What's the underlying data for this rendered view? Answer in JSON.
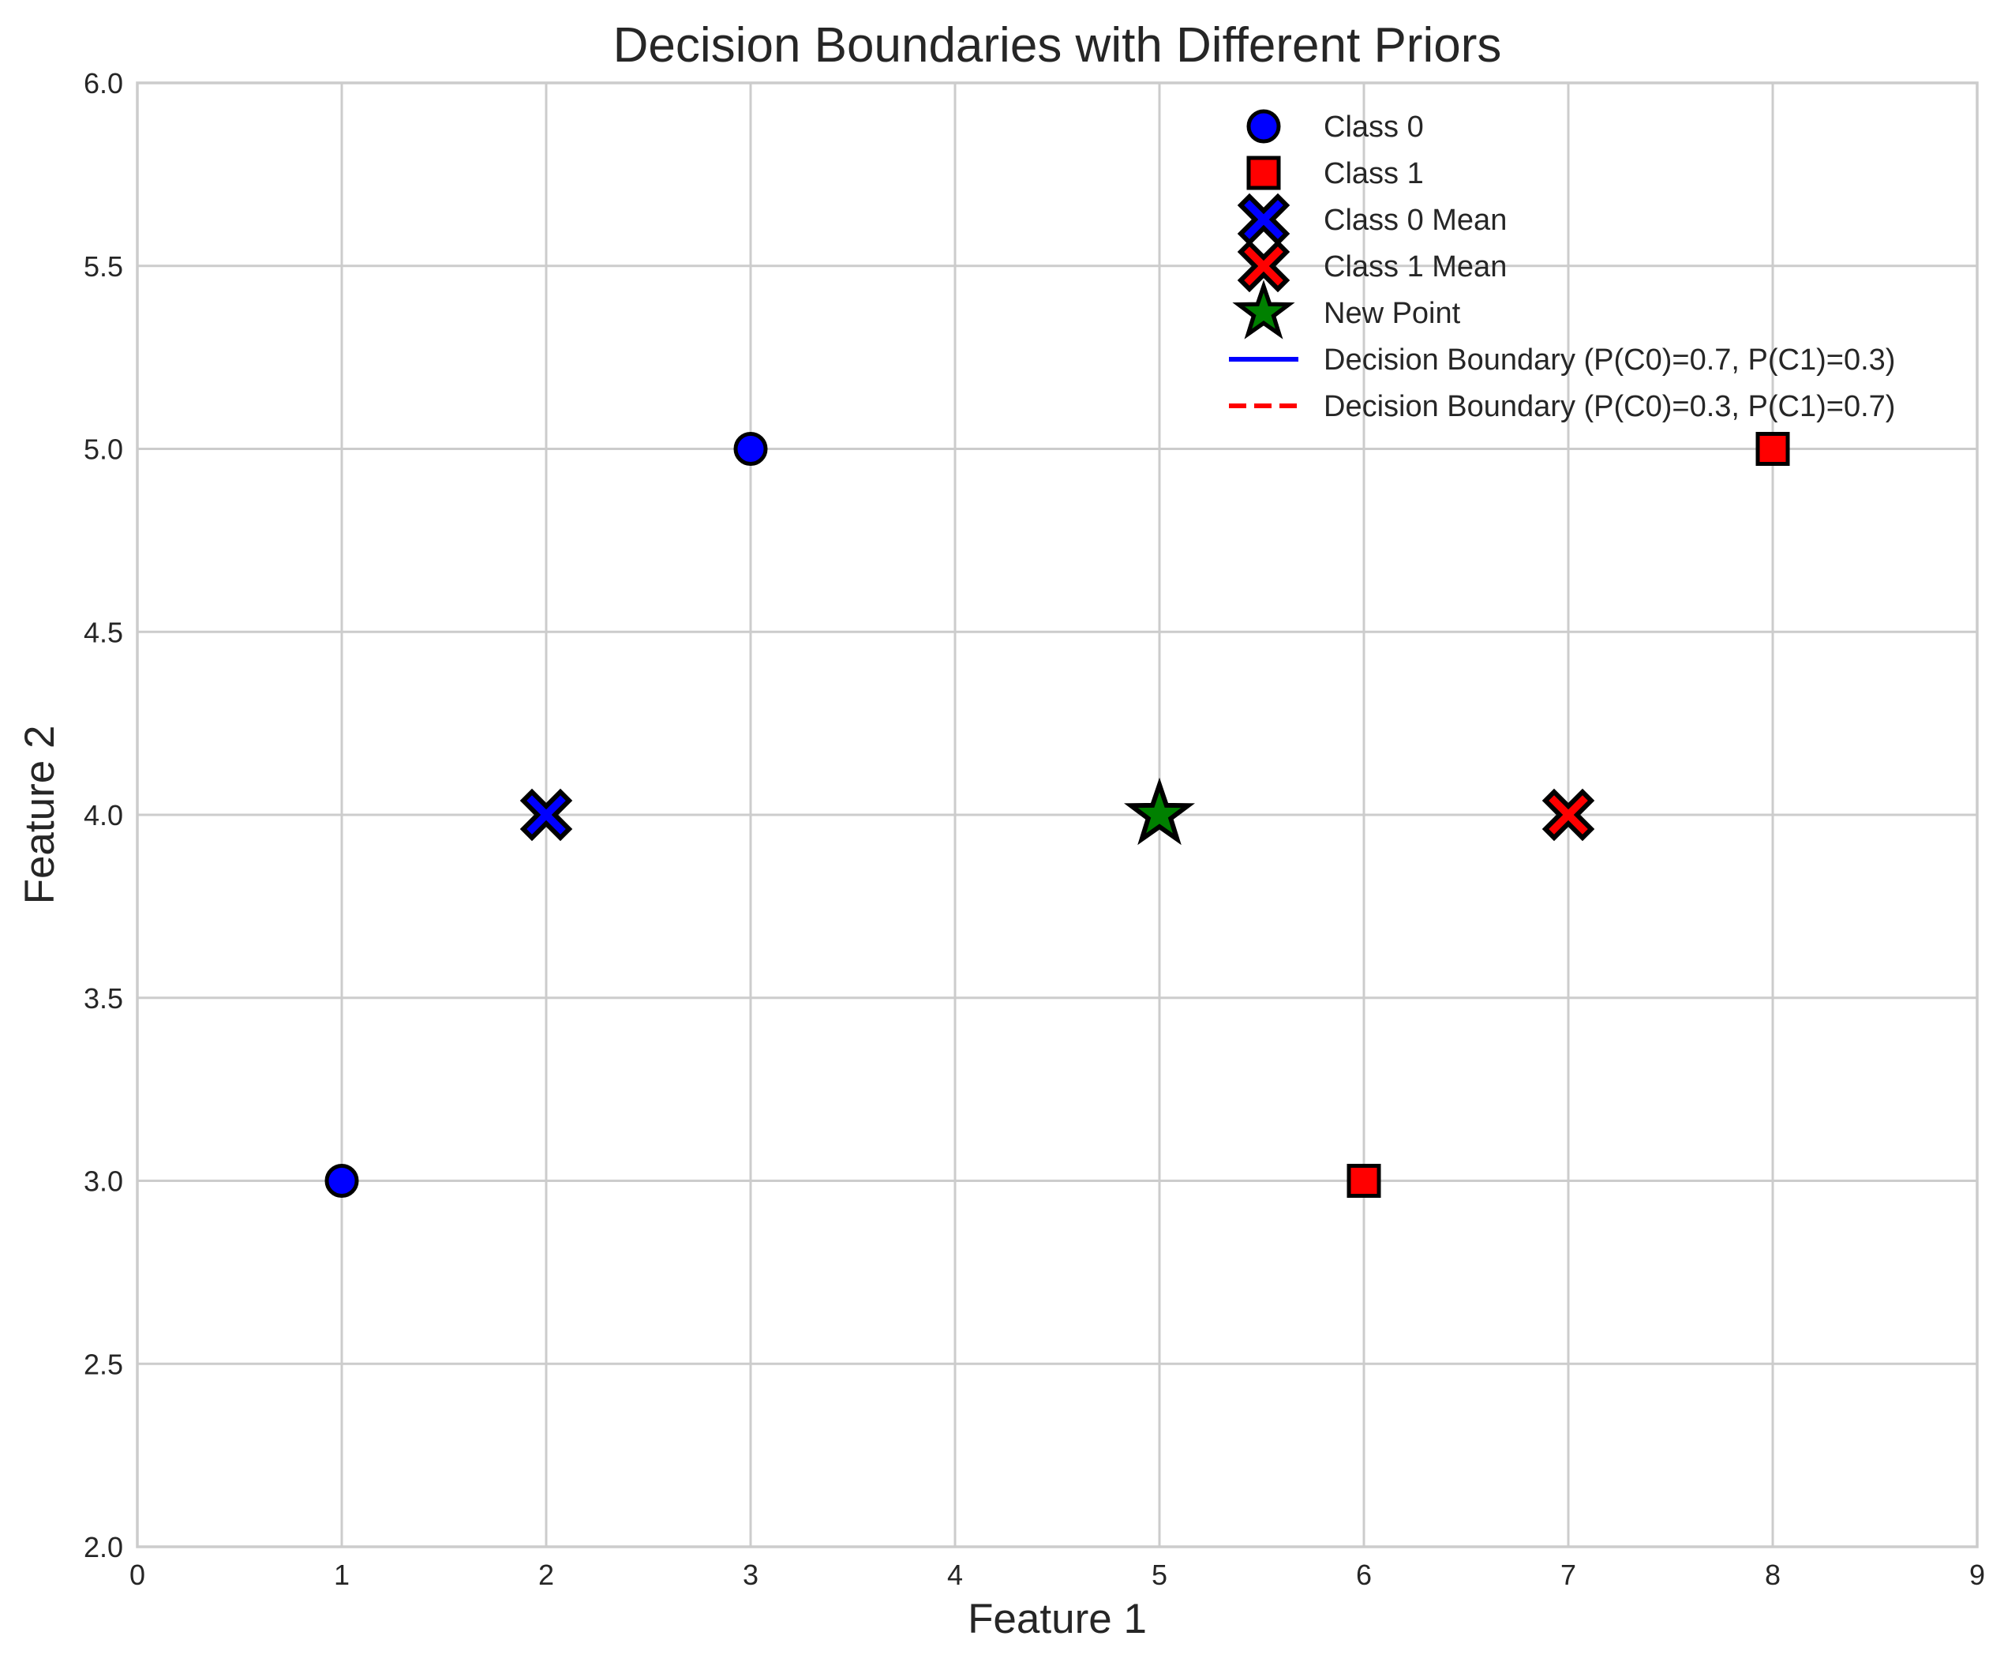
{
  "chart_data": {
    "type": "scatter",
    "title": "Decision Boundaries with Different Priors",
    "xlabel": "Feature 1",
    "ylabel": "Feature 2",
    "xlim": [
      0,
      9
    ],
    "ylim": [
      2,
      6
    ],
    "xticks": [
      0,
      1,
      2,
      3,
      4,
      5,
      6,
      7,
      8,
      9
    ],
    "yticks": [
      2.0,
      2.5,
      3.0,
      3.5,
      4.0,
      4.5,
      5.0,
      5.5,
      6.0
    ],
    "xtick_labels": [
      "0",
      "1",
      "2",
      "3",
      "4",
      "5",
      "6",
      "7",
      "8",
      "9"
    ],
    "ytick_labels": [
      "2.0",
      "2.5",
      "3.0",
      "3.5",
      "4.0",
      "4.5",
      "5.0",
      "5.5",
      "6.0"
    ],
    "grid": true,
    "legend_position": "top-right",
    "series": [
      {
        "name": "Class 0",
        "marker": "circle",
        "color": "#0000ff",
        "points": [
          [
            1,
            3
          ],
          [
            3,
            5
          ]
        ]
      },
      {
        "name": "Class 1",
        "marker": "square",
        "color": "#ff0000",
        "points": [
          [
            6,
            3
          ],
          [
            8,
            5
          ]
        ]
      },
      {
        "name": "Class 0 Mean",
        "marker": "x-filled",
        "color": "#0000ff",
        "points": [
          [
            2,
            4
          ]
        ]
      },
      {
        "name": "Class 1 Mean",
        "marker": "x-filled",
        "color": "#ff0000",
        "points": [
          [
            7,
            4
          ]
        ]
      },
      {
        "name": "New Point",
        "marker": "star",
        "color": "#008000",
        "points": [
          [
            5,
            4
          ]
        ]
      }
    ],
    "lines": [
      {
        "name": "Decision Boundary (P(C0)=0.7, P(C1)=0.3)",
        "color": "#0000ff",
        "style": "solid"
      },
      {
        "name": "Decision Boundary (P(C0)=0.3, P(C1)=0.7)",
        "color": "#ff0000",
        "style": "dashed"
      }
    ]
  }
}
